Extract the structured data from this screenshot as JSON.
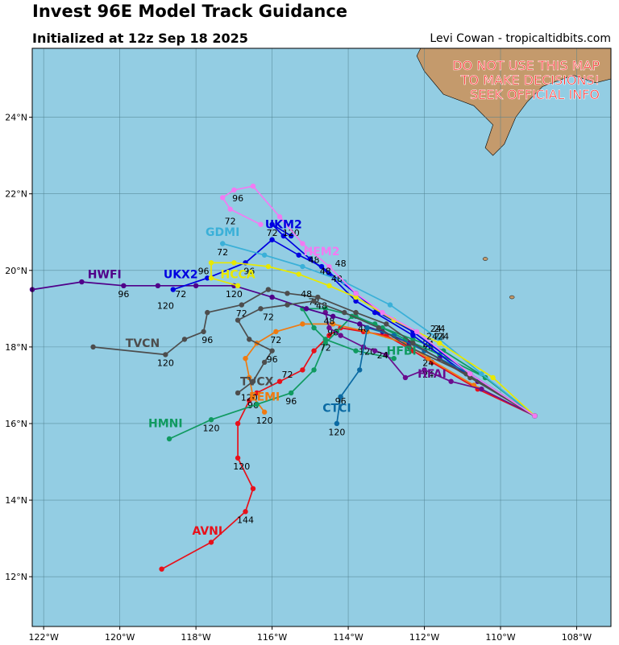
{
  "header": {
    "title": "Invest 96E Model Track Guidance",
    "subtitle": "Initialized at 12z Sep 18 2025",
    "credit": "Levi Cowan - tropicaltidbits.com"
  },
  "warning": [
    "DO NOT USE THIS MAP",
    "TO MAKE DECISIONS!",
    "SEEK OFFICIAL INFO"
  ],
  "colors": {
    "ocean": "#93cde3",
    "land": "#c49a6c",
    "warning": "#ff2020"
  },
  "axes": {
    "lon_min": -122.3,
    "lon_max": -107.1,
    "lat_min": 10.7,
    "lat_max": 25.8,
    "x_ticks": [
      -122,
      -120,
      -118,
      -116,
      -114,
      -112,
      -110,
      -108
    ],
    "x_tick_labels": [
      "122°W",
      "120°W",
      "118°W",
      "116°W",
      "114°W",
      "112°W",
      "110°W",
      "108°W"
    ],
    "y_ticks": [
      12,
      14,
      16,
      18,
      20,
      22,
      24
    ],
    "y_tick_labels": [
      "12°N",
      "14°N",
      "16°N",
      "18°N",
      "20°N",
      "22°N",
      "24°N"
    ]
  },
  "tracks": [
    {
      "name": "AVNI",
      "color": "#e8101a",
      "label_at": [
        -117.7,
        13.1
      ],
      "points": [
        [
          -109.1,
          16.2
        ],
        [
          -110.6,
          16.9
        ],
        [
          -111.8,
          17.6
        ],
        [
          -112.3,
          17.9
        ],
        [
          -113.0,
          18.3
        ],
        [
          -113.6,
          18.4
        ],
        [
          -114.2,
          18.5
        ],
        [
          -114.5,
          18.3
        ],
        [
          -114.9,
          17.9
        ],
        [
          -115.2,
          17.4
        ],
        [
          -115.8,
          17.1
        ],
        [
          -116.4,
          16.8
        ],
        [
          -116.6,
          16.6
        ],
        [
          -116.9,
          16.0
        ],
        [
          -116.9,
          15.1
        ],
        [
          -116.5,
          14.3
        ],
        [
          -116.7,
          13.7
        ],
        [
          -117.6,
          12.9
        ],
        [
          -118.9,
          12.2
        ]
      ],
      "hours": [
        {
          "h": "24",
          "at": [
            -111.9,
            17.5
          ]
        },
        {
          "h": "72",
          "at": [
            -115.6,
            17.2
          ]
        },
        {
          "h": "120",
          "at": [
            -116.8,
            14.8
          ]
        },
        {
          "h": "144",
          "at": [
            -116.7,
            13.4
          ]
        }
      ]
    },
    {
      "name": "EEMI",
      "color": "#f07a10",
      "label_at": [
        -116.2,
        16.6
      ],
      "points": [
        [
          -109.1,
          16.2
        ],
        [
          -110.7,
          17.0
        ],
        [
          -111.9,
          17.7
        ],
        [
          -112.5,
          18.1
        ],
        [
          -113.5,
          18.4
        ],
        [
          -114.4,
          18.6
        ],
        [
          -115.2,
          18.6
        ],
        [
          -115.9,
          18.4
        ],
        [
          -116.4,
          18.1
        ],
        [
          -116.7,
          17.7
        ],
        [
          -116.6,
          17.2
        ],
        [
          -116.5,
          16.7
        ],
        [
          -116.2,
          16.3
        ]
      ],
      "hours": [
        {
          "h": "72",
          "at": [
            -115.9,
            18.1
          ]
        },
        {
          "h": "96",
          "at": [
            -116.5,
            16.4
          ]
        },
        {
          "h": "120",
          "at": [
            -116.2,
            16.0
          ]
        }
      ]
    },
    {
      "name": "HMNI",
      "color": "#109a60",
      "label_at": [
        -118.8,
        15.9
      ],
      "points": [
        [
          -109.1,
          16.2
        ],
        [
          -110.4,
          17.2
        ],
        [
          -111.6,
          17.8
        ],
        [
          -112.5,
          18.2
        ],
        [
          -113.3,
          18.6
        ],
        [
          -113.9,
          18.8
        ],
        [
          -114.3,
          18.4
        ],
        [
          -114.6,
          18.1
        ],
        [
          -114.9,
          17.4
        ],
        [
          -115.5,
          16.8
        ],
        [
          -116.4,
          16.5
        ],
        [
          -117.6,
          16.1
        ],
        [
          -118.7,
          15.6
        ]
      ],
      "hours": [
        {
          "h": "72",
          "at": [
            -114.6,
            17.9
          ]
        },
        {
          "h": "96",
          "at": [
            -115.5,
            16.5
          ]
        },
        {
          "h": "120",
          "at": [
            -117.6,
            15.8
          ]
        }
      ]
    },
    {
      "name": "HFBI",
      "color": "#109a60",
      "label_at": [
        -112.6,
        17.8
      ],
      "points": [
        [
          -109.1,
          16.2
        ],
        [
          -110.4,
          17.2
        ],
        [
          -111.5,
          17.9
        ],
        [
          -112.3,
          18.2
        ],
        [
          -113.1,
          18.5
        ],
        [
          -113.8,
          18.8
        ],
        [
          -114.6,
          19.0
        ],
        [
          -115.2,
          19.0
        ],
        [
          -114.9,
          18.5
        ],
        [
          -114.6,
          18.2
        ],
        [
          -113.8,
          17.9
        ],
        [
          -112.8,
          17.7
        ]
      ],
      "hours": [
        {
          "h": "24",
          "at": [
            -111.9,
            17.9
          ]
        },
        {
          "h": "48",
          "at": [
            -113.6,
            18.4
          ]
        },
        {
          "h": "72",
          "at": [
            -114.9,
            19.1
          ]
        },
        {
          "h": "96",
          "at": [
            -114.4,
            18.3
          ]
        },
        {
          "h": "120",
          "at": [
            -113.5,
            17.8
          ]
        }
      ]
    },
    {
      "name": "HFAI",
      "color": "#6a0d8e",
      "label_at": [
        -111.8,
        17.2
      ],
      "points": [
        [
          -109.1,
          16.2
        ],
        [
          -110.5,
          16.9
        ],
        [
          -111.3,
          17.1
        ],
        [
          -112.0,
          17.4
        ],
        [
          -112.5,
          17.2
        ],
        [
          -113.0,
          17.8
        ],
        [
          -113.3,
          17.9
        ],
        [
          -113.6,
          18.0
        ],
        [
          -114.2,
          18.3
        ],
        [
          -114.5,
          18.5
        ],
        [
          -114.6,
          18.9
        ]
      ],
      "hours": [
        {
          "h": "24",
          "at": [
            -111.9,
            17.2
          ]
        },
        {
          "h": "24",
          "at": [
            -113.1,
            17.7
          ]
        },
        {
          "h": "48",
          "at": [
            -114.5,
            18.6
          ]
        }
      ]
    },
    {
      "name": "HWFI",
      "color": "#50008a",
      "label_at": [
        -120.4,
        19.8
      ],
      "points": [
        [
          -109.1,
          16.2
        ],
        [
          -110.6,
          17.1
        ],
        [
          -111.6,
          17.7
        ],
        [
          -112.4,
          18.1
        ],
        [
          -113.1,
          18.4
        ],
        [
          -113.7,
          18.6
        ],
        [
          -114.4,
          18.8
        ],
        [
          -115.1,
          19.0
        ],
        [
          -116.0,
          19.3
        ],
        [
          -117.0,
          19.6
        ],
        [
          -118.0,
          19.6
        ],
        [
          -119.0,
          19.6
        ],
        [
          -119.9,
          19.6
        ],
        [
          -121.0,
          19.7
        ],
        [
          -122.3,
          19.5
        ]
      ],
      "hours": [
        {
          "h": "24",
          "at": [
            -111.9,
            18.0
          ]
        },
        {
          "h": "48",
          "at": [
            -114.7,
            19.0
          ]
        },
        {
          "h": "96",
          "at": [
            -119.9,
            19.3
          ]
        }
      ]
    },
    {
      "name": "UKX2",
      "color": "#0000e0",
      "label_at": [
        -118.4,
        19.8
      ],
      "points": [
        [
          -109.1,
          16.2
        ],
        [
          -110.8,
          17.3
        ],
        [
          -112.3,
          18.4
        ],
        [
          -113.2,
          18.9
        ],
        [
          -113.8,
          19.4
        ],
        [
          -114.7,
          20.1
        ],
        [
          -115.3,
          20.4
        ],
        [
          -116.0,
          20.8
        ],
        [
          -116.7,
          20.2
        ],
        [
          -117.7,
          19.8
        ],
        [
          -118.6,
          19.5
        ]
      ],
      "hours": [
        {
          "h": "72",
          "at": [
            -118.4,
            19.3
          ]
        },
        {
          "h": "120",
          "at": [
            -118.8,
            19.0
          ]
        }
      ]
    },
    {
      "name": "UKM2",
      "color": "#0000e0",
      "label_at": [
        -115.7,
        21.1
      ],
      "points": [
        [
          -109.1,
          16.2
        ],
        [
          -110.9,
          17.3
        ],
        [
          -112.3,
          18.3
        ],
        [
          -113.3,
          18.9
        ],
        [
          -113.8,
          19.2
        ],
        [
          -114.5,
          19.9
        ],
        [
          -115.0,
          20.3
        ],
        [
          -115.7,
          20.9
        ],
        [
          -116.0,
          21.2
        ],
        [
          -115.5,
          20.9
        ]
      ],
      "hours": [
        {
          "h": "24",
          "at": [
            -111.6,
            18.2
          ]
        },
        {
          "h": "48",
          "at": [
            -114.2,
            20.1
          ]
        },
        {
          "h": "72",
          "at": [
            -116.0,
            20.9
          ]
        },
        {
          "h": "120",
          "at": [
            -115.5,
            20.9
          ]
        }
      ]
    },
    {
      "name": "CTCI",
      "color": "#0b6aa3",
      "label_at": [
        -114.3,
        16.3
      ],
      "points": [
        [
          -109.1,
          16.2
        ],
        [
          -110.8,
          17.3
        ],
        [
          -112.0,
          17.9
        ],
        [
          -112.8,
          18.3
        ],
        [
          -113.5,
          18.5
        ],
        [
          -113.7,
          17.4
        ],
        [
          -114.2,
          16.7
        ],
        [
          -114.3,
          16.0
        ]
      ],
      "hours": [
        {
          "h": "96",
          "at": [
            -114.2,
            16.5
          ]
        },
        {
          "h": "120",
          "at": [
            -114.3,
            15.7
          ]
        }
      ]
    },
    {
      "name": "GDMI",
      "color": "#3ab0d8",
      "label_at": [
        -117.3,
        20.9
      ],
      "points": [
        [
          -109.1,
          16.2
        ],
        [
          -110.5,
          17.3
        ],
        [
          -111.6,
          18.2
        ],
        [
          -112.9,
          19.1
        ],
        [
          -114.1,
          19.7
        ],
        [
          -115.2,
          20.1
        ],
        [
          -116.2,
          20.4
        ],
        [
          -117.3,
          20.7
        ]
      ],
      "hours": [
        {
          "h": "24",
          "at": [
            -111.6,
            18.4
          ]
        },
        {
          "h": "48",
          "at": [
            -114.9,
            20.2
          ]
        },
        {
          "h": "72",
          "at": [
            -117.3,
            20.4
          ]
        }
      ]
    },
    {
      "name": "HCCA",
      "color": "#e8e800",
      "label_at": [
        -116.9,
        19.8
      ],
      "points": [
        [
          -109.1,
          16.2
        ],
        [
          -110.2,
          17.2
        ],
        [
          -111.6,
          18.1
        ],
        [
          -112.8,
          18.7
        ],
        [
          -113.8,
          19.3
        ],
        [
          -114.5,
          19.6
        ],
        [
          -115.3,
          19.9
        ],
        [
          -116.1,
          20.1
        ],
        [
          -117.0,
          20.2
        ],
        [
          -117.6,
          20.2
        ],
        [
          -117.6,
          19.8
        ],
        [
          -116.9,
          19.6
        ]
      ],
      "hours": [
        {
          "h": "24",
          "at": [
            -111.5,
            18.2
          ]
        },
        {
          "h": "48",
          "at": [
            -114.3,
            19.7
          ]
        },
        {
          "h": "96",
          "at": [
            -117.8,
            19.9
          ]
        },
        {
          "h": "96",
          "at": [
            -116.6,
            19.9
          ]
        },
        {
          "h": "120",
          "at": [
            -117.0,
            19.3
          ]
        }
      ]
    },
    {
      "name": "TVCN",
      "color": "#4d4d4d",
      "label_at": [
        -119.4,
        18.0
      ],
      "points": [
        [
          -109.1,
          16.2
        ],
        [
          -110.8,
          17.2
        ],
        [
          -112.3,
          18.1
        ],
        [
          -113.0,
          18.6
        ],
        [
          -113.8,
          18.9
        ],
        [
          -114.8,
          19.3
        ],
        [
          -115.6,
          19.4
        ],
        [
          -116.1,
          19.5
        ],
        [
          -116.8,
          19.1
        ],
        [
          -117.7,
          18.9
        ],
        [
          -117.8,
          18.4
        ],
        [
          -118.3,
          18.2
        ],
        [
          -118.8,
          17.8
        ],
        [
          -120.7,
          18.0
        ]
      ],
      "hours": [
        {
          "h": "24",
          "at": [
            -111.8,
            18.2
          ]
        },
        {
          "h": "72",
          "at": [
            -116.8,
            18.8
          ]
        },
        {
          "h": "96",
          "at": [
            -117.7,
            18.1
          ]
        },
        {
          "h": "120",
          "at": [
            -118.8,
            17.5
          ]
        }
      ]
    },
    {
      "name": "TVCX",
      "color": "#4d4d4d",
      "label_at": [
        -116.4,
        17.0
      ],
      "points": [
        [
          -109.1,
          16.2
        ],
        [
          -110.9,
          17.3
        ],
        [
          -112.4,
          18.0
        ],
        [
          -113.2,
          18.5
        ],
        [
          -114.1,
          18.9
        ],
        [
          -114.9,
          19.2
        ],
        [
          -115.6,
          19.1
        ],
        [
          -116.3,
          19.0
        ],
        [
          -116.9,
          18.7
        ],
        [
          -116.6,
          18.2
        ],
        [
          -116.0,
          17.9
        ],
        [
          -116.2,
          17.6
        ],
        [
          -116.5,
          17.1
        ],
        [
          -116.9,
          16.8
        ]
      ],
      "hours": [
        {
          "h": "48",
          "at": [
            -115.1,
            19.3
          ]
        },
        {
          "h": "72",
          "at": [
            -116.1,
            18.7
          ]
        },
        {
          "h": "96",
          "at": [
            -116.0,
            17.6
          ]
        },
        {
          "h": "120",
          "at": [
            -116.6,
            16.6
          ]
        }
      ]
    },
    {
      "name": "HEM2",
      "color": "#f27af2",
      "label_at": [
        -114.7,
        20.4
      ],
      "points": [
        [
          -109.1,
          16.2
        ],
        [
          -110.8,
          17.3
        ],
        [
          -112.2,
          18.4
        ],
        [
          -113.1,
          18.9
        ],
        [
          -113.8,
          19.4
        ],
        [
          -114.5,
          20.1
        ],
        [
          -115.2,
          20.7
        ],
        [
          -115.8,
          21.4
        ],
        [
          -116.5,
          22.2
        ],
        [
          -117.0,
          22.1
        ],
        [
          -117.3,
          21.9
        ],
        [
          -117.1,
          21.6
        ],
        [
          -116.3,
          21.2
        ]
      ],
      "hours": [
        {
          "h": "24",
          "at": [
            -111.7,
            18.4
          ]
        },
        {
          "h": "48",
          "at": [
            -114.6,
            19.9
          ]
        },
        {
          "h": "96",
          "at": [
            -116.9,
            21.8
          ]
        },
        {
          "h": "72",
          "at": [
            -117.1,
            21.2
          ]
        }
      ]
    }
  ]
}
